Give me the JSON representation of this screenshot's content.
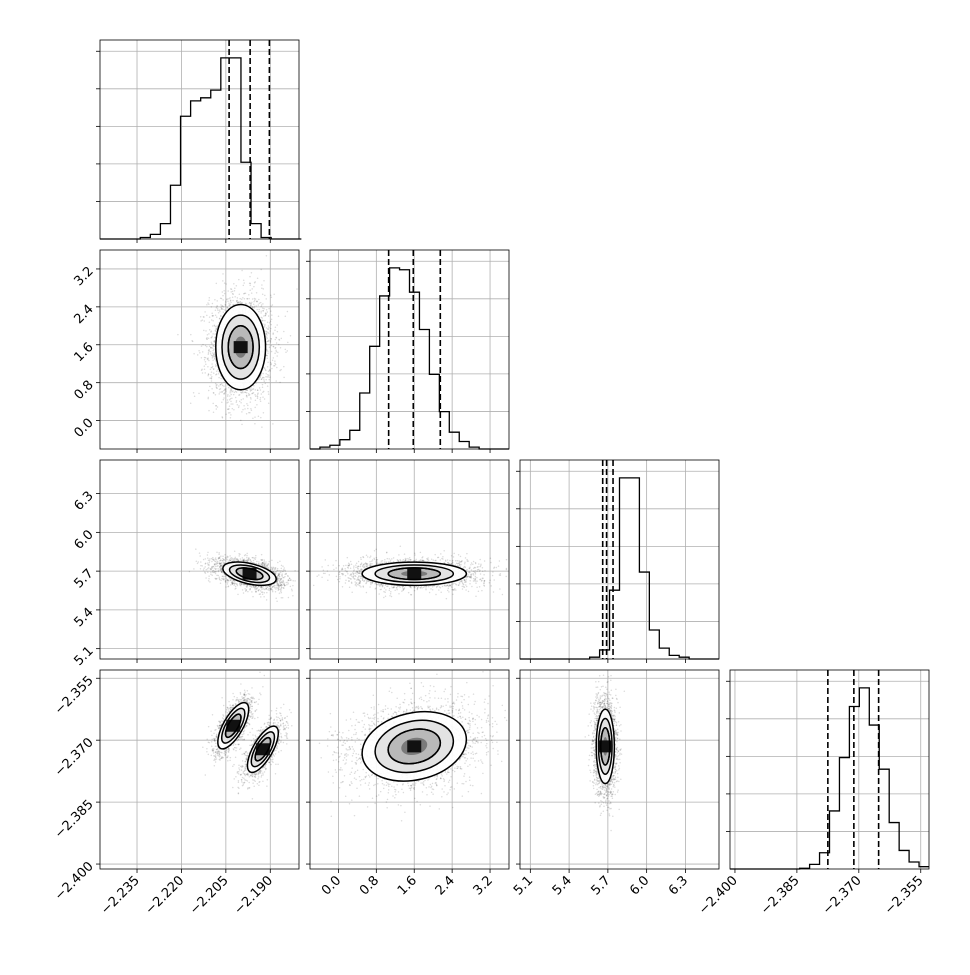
{
  "chart_data": {
    "type": "corner",
    "grid": true,
    "quantile_lines": "dashed",
    "parameters": [
      {
        "range": [
          -2.2475,
          -2.1803
        ],
        "ticks": [
          -2.235,
          -2.22,
          -2.205,
          -2.19
        ],
        "tick_labels": [
          "−2.235",
          "−2.220",
          "−2.205",
          "−2.190"
        ],
        "quantiles": [
          -2.2039,
          -2.1968,
          -2.1903
        ]
      },
      {
        "range": [
          -0.6,
          3.6
        ],
        "ticks": [
          0.0,
          0.8,
          1.6,
          2.4,
          3.2
        ],
        "tick_labels": [
          "0.0",
          "0.8",
          "1.6",
          "2.4",
          "3.2"
        ],
        "quantiles": [
          1.06,
          1.58,
          2.15
        ]
      },
      {
        "range": [
          5.02,
          6.56
        ],
        "ticks": [
          5.1,
          5.4,
          5.7,
          6.0,
          6.3
        ],
        "tick_labels": [
          "5.1",
          "5.4",
          "5.7",
          "6.0",
          "6.3"
        ],
        "quantiles": [
          5.66,
          5.69,
          5.74
        ]
      },
      {
        "range": [
          -2.4012,
          -2.353
        ],
        "ticks": [
          -2.4,
          -2.385,
          -2.37,
          -2.355
        ],
        "tick_labels": [
          "−2.400",
          "−2.385",
          "−2.370",
          "−2.355"
        ],
        "quantiles": [
          -2.3775,
          -2.3712,
          -2.3652
        ]
      }
    ],
    "histograms": [
      {
        "parameter": 0,
        "bin_edges_start": -2.2475,
        "bin_width": 0.0034,
        "counts": [
          0,
          0,
          0,
          0,
          1,
          3,
          10,
          35,
          80,
          90,
          92,
          97,
          118,
          118,
          50,
          10,
          1,
          0,
          0,
          0
        ]
      },
      {
        "parameter": 1,
        "bin_edges_start": -0.6,
        "bin_width": 0.21,
        "counts": [
          0,
          1,
          2,
          5,
          10,
          30,
          55,
          82,
          97,
          96,
          84,
          64,
          40,
          20,
          9,
          4,
          1,
          0,
          0,
          0
        ]
      },
      {
        "parameter": 2,
        "bin_edges_start": 5.02,
        "bin_width": 0.077,
        "counts": [
          0,
          0,
          0,
          0,
          0,
          0,
          0,
          1,
          5,
          38,
          100,
          100,
          48,
          16,
          6,
          2,
          1,
          0,
          0,
          0
        ]
      },
      {
        "parameter": 3,
        "bin_edges_start": -2.4012,
        "bin_width": 0.00241,
        "counts": [
          0,
          0,
          0,
          0,
          0,
          0,
          0,
          0.3,
          2,
          7,
          25,
          48,
          70,
          78,
          62,
          43,
          20,
          8,
          3,
          1
        ]
      }
    ],
    "scatter_2d": [
      {
        "x_param": 0,
        "y_param": 1,
        "components": [
          {
            "center": [
              -2.2,
              1.55
            ],
            "sd": [
              0.0042,
              0.45
            ],
            "corr": 0.0
          }
        ]
      },
      {
        "x_param": 0,
        "y_param": 2,
        "components": [
          {
            "center": [
              -2.197,
              5.68
            ],
            "sd": [
              0.0045,
              0.045
            ],
            "corr": -0.45
          }
        ]
      },
      {
        "x_param": 1,
        "y_param": 2,
        "components": [
          {
            "center": [
              1.6,
              5.68
            ],
            "sd": [
              0.55,
              0.045
            ],
            "corr": 0.0
          }
        ]
      },
      {
        "x_param": 0,
        "y_param": 3,
        "components": [
          {
            "center": [
              -2.2025,
              -2.3665
            ],
            "sd": [
              0.0026,
              0.0028
            ],
            "corr": 0.7
          },
          {
            "center": [
              -2.1925,
              -2.3722
            ],
            "sd": [
              0.0026,
              0.0028
            ],
            "corr": 0.7
          }
        ]
      },
      {
        "x_param": 1,
        "y_param": 3,
        "components": [
          {
            "center": [
              1.6,
              -2.3715
            ],
            "sd": [
              0.55,
              0.0042
            ],
            "corr": 0.2
          }
        ]
      },
      {
        "x_param": 2,
        "y_param": 3,
        "components": [
          {
            "center": [
              5.68,
              -2.3715
            ],
            "sd": [
              0.035,
              0.0045
            ],
            "corr": 0.0
          }
        ]
      }
    ]
  }
}
